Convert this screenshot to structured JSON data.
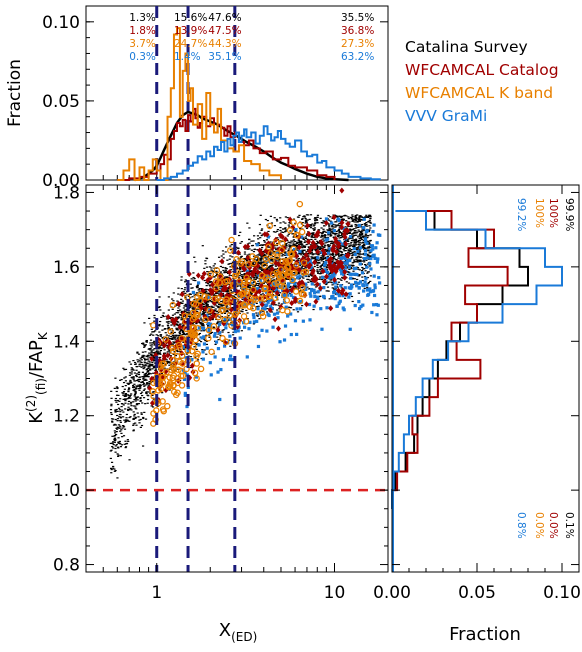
{
  "chart_data": [
    {
      "type": "line",
      "panel": "top-histogram",
      "ylabel": "Fraction",
      "xlabel": "",
      "x_scale": "log",
      "xlim": [
        0.4,
        20
      ],
      "ylim": [
        0,
        0.11
      ],
      "yticks": [
        "0.10",
        "0.05",
        "0.00"
      ],
      "ytick_values": [
        0.1,
        0.05,
        0.0
      ],
      "vlines_x": [
        1.0,
        1.5,
        2.75
      ],
      "percent_table": {
        "columns_x": [
          0.7,
          1.25,
          1.95,
          13.5
        ],
        "rows": [
          {
            "series": "Catalina Survey",
            "values": [
              "1.3%",
              "15.6%",
              "47.6%",
              "35.5%"
            ]
          },
          {
            "series": "WFCAMCAL Catalog",
            "values": [
              "1.8%",
              "13.9%",
              "47.5%",
              "36.8%"
            ]
          },
          {
            "series": "WFCAMCAL K band",
            "values": [
              "3.7%",
              "24.7%",
              "44.3%",
              "27.3%"
            ]
          },
          {
            "series": "VVV GraMi",
            "values": [
              "0.3%",
              "1.4%",
              "35.1%",
              "63.2%"
            ]
          }
        ]
      },
      "series": [
        {
          "name": "Catalina Survey",
          "color": "#000000",
          "style": "smooth",
          "x": [
            0.75,
            0.8,
            0.85,
            0.9,
            0.95,
            1.0,
            1.05,
            1.1,
            1.2,
            1.3,
            1.4,
            1.5,
            1.6,
            1.7,
            1.8,
            2.0,
            2.2,
            2.5,
            2.8,
            3.2,
            3.6,
            4.0,
            4.5,
            5.0,
            5.5,
            6,
            7,
            8,
            9,
            10,
            12
          ],
          "y": [
            0.0,
            0.001,
            0.002,
            0.004,
            0.006,
            0.009,
            0.014,
            0.019,
            0.028,
            0.036,
            0.041,
            0.043,
            0.042,
            0.041,
            0.039,
            0.037,
            0.035,
            0.031,
            0.028,
            0.024,
            0.021,
            0.018,
            0.014,
            0.011,
            0.009,
            0.007,
            0.004,
            0.002,
            0.001,
            0.0005,
            0.0
          ]
        },
        {
          "name": "WFCAMCAL Catalog",
          "color": "#a00000",
          "style": "step",
          "x": [
            0.6,
            0.7,
            0.8,
            0.9,
            1.0,
            1.05,
            1.1,
            1.15,
            1.2,
            1.25,
            1.3,
            1.35,
            1.4,
            1.45,
            1.5,
            1.55,
            1.6,
            1.65,
            1.7,
            1.75,
            1.8,
            1.9,
            2.0,
            2.1,
            2.2,
            2.3,
            2.4,
            2.5,
            2.6,
            2.75,
            2.9,
            3.1,
            3.3,
            3.5,
            3.8,
            4.1,
            4.5,
            5,
            5.5,
            6,
            7,
            8,
            9,
            10
          ],
          "y": [
            0.0,
            0.001,
            0.002,
            0.004,
            0.006,
            0.01,
            0.016,
            0.013,
            0.026,
            0.031,
            0.036,
            0.034,
            0.038,
            0.031,
            0.041,
            0.037,
            0.045,
            0.039,
            0.033,
            0.036,
            0.04,
            0.034,
            0.039,
            0.03,
            0.035,
            0.033,
            0.028,
            0.034,
            0.027,
            0.03,
            0.024,
            0.022,
            0.025,
            0.02,
            0.017,
            0.018,
            0.013,
            0.014,
            0.009,
            0.008,
            0.006,
            0.003,
            0.002,
            0.0
          ]
        },
        {
          "name": "WFCAMCAL K band",
          "color": "#e88000",
          "style": "step",
          "x": [
            0.6,
            0.65,
            0.7,
            0.75,
            0.8,
            0.85,
            0.9,
            0.95,
            1.0,
            1.05,
            1.1,
            1.15,
            1.2,
            1.25,
            1.3,
            1.35,
            1.4,
            1.45,
            1.5,
            1.55,
            1.6,
            1.7,
            1.8,
            1.9,
            2.0,
            2.1,
            2.2,
            2.3,
            2.5,
            2.7,
            2.9,
            3.1,
            3.4,
            3.8,
            4.3,
            5
          ],
          "y": [
            0.0,
            0.006,
            0.013,
            0.0,
            0.008,
            0.0,
            0.006,
            0.013,
            0.006,
            0.0,
            0.0,
            0.04,
            0.058,
            0.092,
            0.096,
            0.04,
            0.069,
            0.08,
            0.05,
            0.058,
            0.035,
            0.048,
            0.026,
            0.055,
            0.035,
            0.03,
            0.045,
            0.025,
            0.02,
            0.018,
            0.022,
            0.012,
            0.01,
            0.006,
            0.003,
            0.0
          ]
        },
        {
          "name": "VVV GraMi",
          "color": "#1a7ad8",
          "style": "step",
          "x": [
            1.0,
            1.1,
            1.2,
            1.3,
            1.4,
            1.5,
            1.6,
            1.7,
            1.8,
            1.9,
            2.0,
            2.1,
            2.2,
            2.3,
            2.4,
            2.5,
            2.6,
            2.7,
            2.8,
            2.9,
            3.0,
            3.1,
            3.2,
            3.4,
            3.6,
            3.8,
            4.0,
            4.2,
            4.4,
            4.6,
            4.8,
            5.0,
            5.3,
            5.6,
            6,
            6.5,
            7,
            7.5,
            8,
            8.5,
            9,
            10,
            11,
            12,
            14,
            16,
            18
          ],
          "y": [
            0.0,
            0.001,
            0.002,
            0.004,
            0.006,
            0.009,
            0.011,
            0.015,
            0.013,
            0.018,
            0.015,
            0.021,
            0.019,
            0.024,
            0.018,
            0.026,
            0.022,
            0.028,
            0.03,
            0.024,
            0.028,
            0.032,
            0.027,
            0.03,
            0.023,
            0.028,
            0.034,
            0.029,
            0.025,
            0.027,
            0.031,
            0.026,
            0.023,
            0.021,
            0.025,
            0.018,
            0.015,
            0.016,
            0.011,
            0.012,
            0.008,
            0.006,
            0.004,
            0.002,
            0.001,
            0.0005,
            0.0
          ]
        }
      ]
    },
    {
      "type": "scatter",
      "panel": "main",
      "xlabel": "X(ED)",
      "ylabel": "K(2)(fi)/FAPK",
      "x_scale": "log",
      "xlim": [
        0.4,
        20
      ],
      "ylim": [
        0.78,
        1.82
      ],
      "xticks": [
        "1",
        "10"
      ],
      "xtick_values": [
        1,
        10
      ],
      "yticks": [
        "1.8",
        "1.6",
        "1.4",
        "1.2",
        "1.0",
        "0.8"
      ],
      "ytick_values": [
        1.8,
        1.6,
        1.4,
        1.2,
        1.0,
        0.8
      ],
      "hline_y": 1.0,
      "hline_color": "#dd2222",
      "vlines_x": [
        1.0,
        1.5,
        2.75
      ],
      "vline_color": "#1a1a7a",
      "series": [
        {
          "name": "Catalina Survey",
          "color": "#000000",
          "marker": "dot",
          "count": 4200,
          "density_note": "dense cloud, x from 0.5 to 18, y rising from about 1.05 at x=1 to about 1.68 near x=6"
        },
        {
          "name": "WFCAMCAL Catalog",
          "color": "#a00000",
          "marker": "diamond",
          "count": 340
        },
        {
          "name": "WFCAMCAL K band",
          "color": "#e88000",
          "marker": "circle",
          "count": 260
        },
        {
          "name": "VVV GraMi",
          "color": "#1a7ad8",
          "marker": "square",
          "count": 420
        }
      ]
    },
    {
      "type": "line",
      "panel": "right-histogram",
      "xlabel": "Fraction",
      "orientation": "horizontal",
      "xlim": [
        0,
        0.11
      ],
      "ylim": [
        0.78,
        1.82
      ],
      "xticks": [
        "0.00",
        "0.05",
        "0.10"
      ],
      "xtick_values": [
        0.0,
        0.05,
        0.1
      ],
      "percent_labels_top": [
        {
          "series": "Catalina Survey",
          "text": "99.9%"
        },
        {
          "series": "WFCAMCAL Catalog",
          "text": "100%"
        },
        {
          "series": "WFCAMCAL K band",
          "text": "100%"
        },
        {
          "series": "VVV GraMi",
          "text": "99.2%"
        }
      ],
      "percent_labels_bottom": [
        {
          "series": "Catalina Survey",
          "text": "0.1%"
        },
        {
          "series": "WFCAMCAL Catalog",
          "text": "0.0%"
        },
        {
          "series": "WFCAMCAL K band",
          "text": "0.0%"
        },
        {
          "series": "VVV GraMi",
          "text": "0.8%"
        }
      ],
      "series": [
        {
          "name": "Catalina Survey",
          "color": "#000000",
          "style": "step",
          "y": [
            0.95,
            1.0,
            1.05,
            1.1,
            1.15,
            1.2,
            1.25,
            1.3,
            1.35,
            1.4,
            1.45,
            1.5,
            1.55,
            1.6,
            1.65,
            1.7,
            1.75
          ],
          "x": [
            0.0,
            0.002,
            0.008,
            0.013,
            0.015,
            0.018,
            0.022,
            0.027,
            0.032,
            0.04,
            0.05,
            0.065,
            0.08,
            0.075,
            0.05,
            0.025,
            0.003
          ]
        },
        {
          "name": "WFCAMCAL Catalog",
          "color": "#a00000",
          "style": "step",
          "y": [
            0.95,
            1.0,
            1.05,
            1.1,
            1.15,
            1.2,
            1.25,
            1.3,
            1.35,
            1.4,
            1.45,
            1.5,
            1.55,
            1.6,
            1.65,
            1.7,
            1.75
          ],
          "x": [
            0.0,
            0.003,
            0.009,
            0.015,
            0.012,
            0.022,
            0.027,
            0.052,
            0.038,
            0.035,
            0.05,
            0.043,
            0.068,
            0.045,
            0.06,
            0.035,
            0.01
          ]
        },
        {
          "name": "VVV GraMi",
          "color": "#1a7ad8",
          "style": "step",
          "y": [
            0.95,
            1.0,
            1.05,
            1.1,
            1.15,
            1.2,
            1.25,
            1.3,
            1.35,
            1.4,
            1.45,
            1.5,
            1.55,
            1.6,
            1.65,
            1.7,
            1.75
          ],
          "x": [
            0.0,
            0.001,
            0.004,
            0.007,
            0.01,
            0.014,
            0.018,
            0.024,
            0.033,
            0.045,
            0.065,
            0.085,
            0.1,
            0.09,
            0.055,
            0.02,
            0.002
          ]
        }
      ]
    }
  ],
  "legend": {
    "placement": "top-right",
    "items": [
      {
        "label": "Catalina Survey",
        "color": "#000000"
      },
      {
        "label": "WFCAMCAL Catalog",
        "color": "#a00000"
      },
      {
        "label": "WFCAMCAL K band",
        "color": "#e88000"
      },
      {
        "label": "VVV GraMi",
        "color": "#1a7ad8"
      }
    ]
  }
}
